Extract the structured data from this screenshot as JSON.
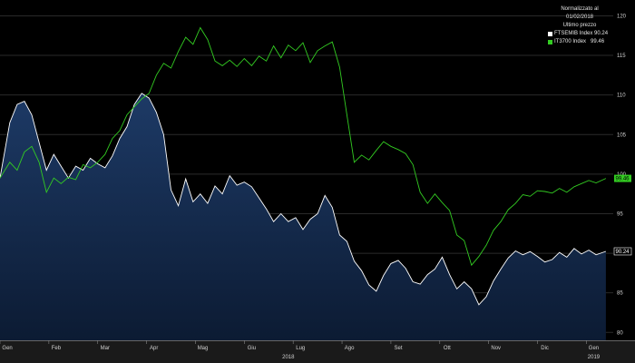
{
  "chart_data": {
    "type": "area",
    "legend": {
      "title_line1": "Normalizzato al 01/02/2018",
      "title_line2": "Ultimo prezzo",
      "placement": "top-right"
    },
    "series": [
      {
        "name": "FTSEMIB Index",
        "legend_value": "90.24",
        "last_label": "90.24",
        "color": "#ffffff",
        "fill": "#13294a",
        "x": [
          0.0,
          0.2,
          0.35,
          0.5,
          0.65,
          0.8,
          0.95,
          1.1,
          1.25,
          1.4,
          1.55,
          1.7,
          1.85,
          2.0,
          2.15,
          2.3,
          2.45,
          2.6,
          2.75,
          2.9,
          3.05,
          3.2,
          3.35,
          3.5,
          3.65,
          3.8,
          3.95,
          4.1,
          4.25,
          4.4,
          4.55,
          4.7,
          4.85,
          5.0,
          5.15,
          5.3,
          5.45,
          5.6,
          5.75,
          5.9,
          6.05,
          6.2,
          6.35,
          6.5,
          6.65,
          6.8,
          6.95,
          7.1,
          7.25,
          7.4,
          7.55,
          7.7,
          7.85,
          8.0,
          8.15,
          8.3,
          8.45,
          8.6,
          8.75,
          8.9,
          9.05,
          9.2,
          9.35,
          9.5,
          9.65,
          9.8,
          9.95,
          10.1,
          10.25,
          10.4,
          10.55,
          10.7,
          10.85,
          11.0,
          11.15,
          11.3,
          11.45,
          11.6,
          11.75,
          11.9,
          12.05,
          12.2,
          12.4
        ],
        "values": [
          99.5,
          106.5,
          108.8,
          109.2,
          107.5,
          104,
          100.5,
          102.5,
          101,
          99.5,
          101,
          100.5,
          102,
          101.3,
          100.8,
          102.3,
          104.5,
          106,
          108.8,
          110.2,
          109.6,
          107.8,
          105,
          98,
          96,
          99.4,
          96.5,
          97.5,
          96.3,
          98.5,
          97.5,
          99.8,
          98.6,
          99,
          98.4,
          97,
          95.6,
          94,
          95,
          94,
          94.5,
          93,
          94.3,
          95,
          97.3,
          95.8,
          92.3,
          91.5,
          89,
          87.8,
          86,
          85.2,
          87.2,
          88.7,
          89.1,
          88.1,
          86.4,
          86.1,
          87.3,
          88,
          89.5,
          87.3,
          85.5,
          86.4,
          85.5,
          83.5,
          84.5,
          86.5,
          88,
          89.4,
          90.3,
          89.8,
          90.2,
          89.6,
          88.9,
          89.2,
          90.1,
          89.5,
          90.6,
          89.9,
          90.4,
          89.8,
          90.24
        ]
      },
      {
        "name": "IT3700 Index",
        "legend_value": "99.46",
        "last_label": "99.46",
        "color": "#33cc22",
        "x": [
          0.0,
          0.2,
          0.35,
          0.5,
          0.65,
          0.8,
          0.95,
          1.1,
          1.25,
          1.4,
          1.55,
          1.7,
          1.85,
          2.0,
          2.15,
          2.3,
          2.45,
          2.6,
          2.75,
          2.9,
          3.05,
          3.2,
          3.35,
          3.5,
          3.65,
          3.8,
          3.95,
          4.1,
          4.25,
          4.4,
          4.55,
          4.7,
          4.85,
          5.0,
          5.15,
          5.3,
          5.45,
          5.6,
          5.75,
          5.9,
          6.05,
          6.2,
          6.35,
          6.5,
          6.65,
          6.8,
          6.95,
          7.1,
          7.25,
          7.4,
          7.55,
          7.7,
          7.85,
          8.0,
          8.15,
          8.3,
          8.45,
          8.6,
          8.75,
          8.9,
          9.05,
          9.2,
          9.35,
          9.5,
          9.65,
          9.8,
          9.95,
          10.1,
          10.25,
          10.4,
          10.55,
          10.7,
          10.85,
          11.0,
          11.15,
          11.3,
          11.45,
          11.6,
          11.75,
          11.9,
          12.05,
          12.2,
          12.4
        ],
        "values": [
          99.5,
          101.5,
          100.5,
          102.8,
          103.5,
          101.5,
          97.7,
          99.5,
          98.8,
          99.6,
          99.3,
          101.2,
          100.8,
          101.5,
          102.5,
          104.5,
          105.5,
          107.5,
          108.5,
          109.5,
          110.2,
          112.5,
          114,
          113.4,
          115.5,
          117.3,
          116.4,
          118.5,
          117,
          114.3,
          113.7,
          114.4,
          113.6,
          114.6,
          113.7,
          114.9,
          114.3,
          116.2,
          114.7,
          116.3,
          115.6,
          116.6,
          114.1,
          115.6,
          116.2,
          116.7,
          113.5,
          107.5,
          101.5,
          102.4,
          101.8,
          103,
          104.1,
          103.5,
          103.1,
          102.6,
          101.2,
          97.7,
          96.3,
          97.5,
          96.4,
          95.4,
          92.3,
          91.6,
          88.5,
          89.6,
          91,
          92.9,
          94,
          95.5,
          96.3,
          97.4,
          97.2,
          97.9,
          97.8,
          97.6,
          98.2,
          97.7,
          98.4,
          98.8,
          99.2,
          98.9,
          99.46
        ]
      }
    ],
    "ylim": [
      79,
      122
    ],
    "xlim": [
      0,
      12.55
    ],
    "yticks": [
      "80",
      "85",
      "90",
      "95",
      "100",
      "105",
      "110",
      "115",
      "120"
    ],
    "month_ticks": [
      {
        "x": 0.15,
        "label": "Gen"
      },
      {
        "x": 1.15,
        "label": "Feb"
      },
      {
        "x": 2.15,
        "label": "Mar"
      },
      {
        "x": 3.15,
        "label": "Apr"
      },
      {
        "x": 4.15,
        "label": "Mag"
      },
      {
        "x": 5.15,
        "label": "Giu"
      },
      {
        "x": 6.15,
        "label": "Lug"
      },
      {
        "x": 7.15,
        "label": "Ago"
      },
      {
        "x": 8.15,
        "label": "Set"
      },
      {
        "x": 9.15,
        "label": "Ott"
      },
      {
        "x": 10.15,
        "label": "Nov"
      },
      {
        "x": 11.15,
        "label": "Dic"
      },
      {
        "x": 12.15,
        "label": "Gen"
      }
    ],
    "year_labels": [
      {
        "x": 5.9,
        "label": "2018"
      },
      {
        "x": 12.15,
        "label": "2019"
      }
    ],
    "grid": true,
    "background": "#000000",
    "gridline_color": "#2a2a2a"
  }
}
